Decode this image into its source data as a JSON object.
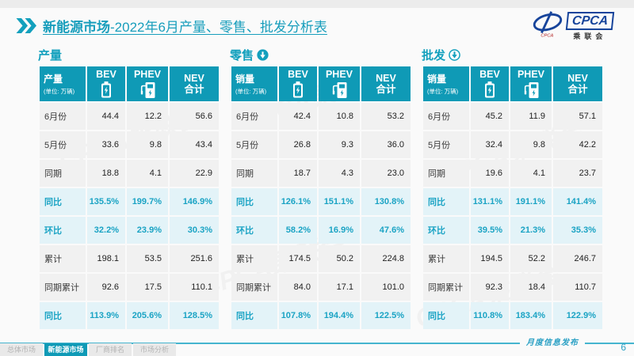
{
  "page": {
    "title_main": "新能源市场",
    "title_rest": "-2022年6月产量、零售、批发分析表",
    "footer_note": "月度信息发布",
    "page_number": "6"
  },
  "logo": {
    "cpca": "CPCA",
    "cn": "乘联会",
    "mark_small_text": "CPCA"
  },
  "tabs": [
    {
      "label": "总体市场",
      "active": false
    },
    {
      "label": "新能源市场",
      "active": true
    },
    {
      "label": "厂商排名",
      "active": false
    },
    {
      "label": "市场分析",
      "active": false
    }
  ],
  "colors": {
    "teal": "#0f9ab6",
    "title_teal": "#189ebc",
    "highlight_text": "#1aa3c4",
    "highlight_row_bg": "#e3f3f8",
    "normal_row_bg": "#f1f1f1",
    "logo_blue": "#17449b"
  },
  "chart_data": [
    {
      "type": "table",
      "title": "产量",
      "title_icon": null,
      "corner_label": "产量",
      "unit": "(单位: 万辆)",
      "columns": [
        {
          "label": "BEV",
          "icon": "battery-icon"
        },
        {
          "label": "PHEV",
          "icon": "charger-icon"
        },
        {
          "label": "NEV",
          "label2": "合计",
          "icon": null
        }
      ],
      "rows": [
        {
          "label": "6月份",
          "values": [
            "44.4",
            "12.2",
            "56.6"
          ],
          "highlight": false
        },
        {
          "label": "5月份",
          "values": [
            "33.6",
            "9.8",
            "43.4"
          ],
          "highlight": false
        },
        {
          "label": "同期",
          "values": [
            "18.8",
            "4.1",
            "22.9"
          ],
          "highlight": false
        },
        {
          "label": "同比",
          "values": [
            "135.5%",
            "199.7%",
            "146.9%"
          ],
          "highlight": true
        },
        {
          "label": "环比",
          "values": [
            "32.2%",
            "23.9%",
            "30.3%"
          ],
          "highlight": true
        },
        {
          "label": "累计",
          "values": [
            "198.1",
            "53.5",
            "251.6"
          ],
          "highlight": false
        },
        {
          "label": "同期累计",
          "values": [
            "92.6",
            "17.5",
            "110.1"
          ],
          "highlight": false
        },
        {
          "label": "同比",
          "values": [
            "113.9%",
            "205.6%",
            "128.5%"
          ],
          "highlight": true
        }
      ]
    },
    {
      "type": "table",
      "title": "零售",
      "title_icon": "down-arrow-filled",
      "corner_label": "销量",
      "unit": "(单位: 万辆)",
      "columns": [
        {
          "label": "BEV",
          "icon": "battery-icon"
        },
        {
          "label": "PHEV",
          "icon": "charger-icon"
        },
        {
          "label": "NEV",
          "label2": "合计",
          "icon": null
        }
      ],
      "rows": [
        {
          "label": "6月份",
          "values": [
            "42.4",
            "10.8",
            "53.2"
          ],
          "highlight": false
        },
        {
          "label": "5月份",
          "values": [
            "26.8",
            "9.3",
            "36.0"
          ],
          "highlight": false
        },
        {
          "label": "同期",
          "values": [
            "18.7",
            "4.3",
            "23.0"
          ],
          "highlight": false
        },
        {
          "label": "同比",
          "values": [
            "126.1%",
            "151.1%",
            "130.8%"
          ],
          "highlight": true
        },
        {
          "label": "环比",
          "values": [
            "58.2%",
            "16.9%",
            "47.6%"
          ],
          "highlight": true
        },
        {
          "label": "累计",
          "values": [
            "174.5",
            "50.2",
            "224.8"
          ],
          "highlight": false
        },
        {
          "label": "同期累计",
          "values": [
            "84.0",
            "17.1",
            "101.0"
          ],
          "highlight": false
        },
        {
          "label": "同比",
          "values": [
            "107.8%",
            "194.4%",
            "122.5%"
          ],
          "highlight": true
        }
      ]
    },
    {
      "type": "table",
      "title": "批发",
      "title_icon": "down-arrow-outline",
      "corner_label": "销量",
      "unit": "(单位: 万辆)",
      "columns": [
        {
          "label": "BEV",
          "icon": "battery-icon"
        },
        {
          "label": "PHEV",
          "icon": "charger-icon"
        },
        {
          "label": "NEV",
          "label2": "合计",
          "icon": null
        }
      ],
      "rows": [
        {
          "label": "6月份",
          "values": [
            "45.2",
            "11.9",
            "57.1"
          ],
          "highlight": false
        },
        {
          "label": "5月份",
          "values": [
            "32.4",
            "9.8",
            "42.2"
          ],
          "highlight": false
        },
        {
          "label": "同期",
          "values": [
            "19.6",
            "4.1",
            "23.7"
          ],
          "highlight": false
        },
        {
          "label": "同比",
          "values": [
            "131.1%",
            "191.1%",
            "141.4%"
          ],
          "highlight": true
        },
        {
          "label": "环比",
          "values": [
            "39.5%",
            "21.3%",
            "35.3%"
          ],
          "highlight": true
        },
        {
          "label": "累计",
          "values": [
            "194.5",
            "52.2",
            "246.7"
          ],
          "highlight": false
        },
        {
          "label": "同期累计",
          "values": [
            "92.3",
            "18.4",
            "110.7"
          ],
          "highlight": false
        },
        {
          "label": "同比",
          "values": [
            "110.8%",
            "183.4%",
            "122.9%"
          ],
          "highlight": true
        }
      ]
    }
  ]
}
